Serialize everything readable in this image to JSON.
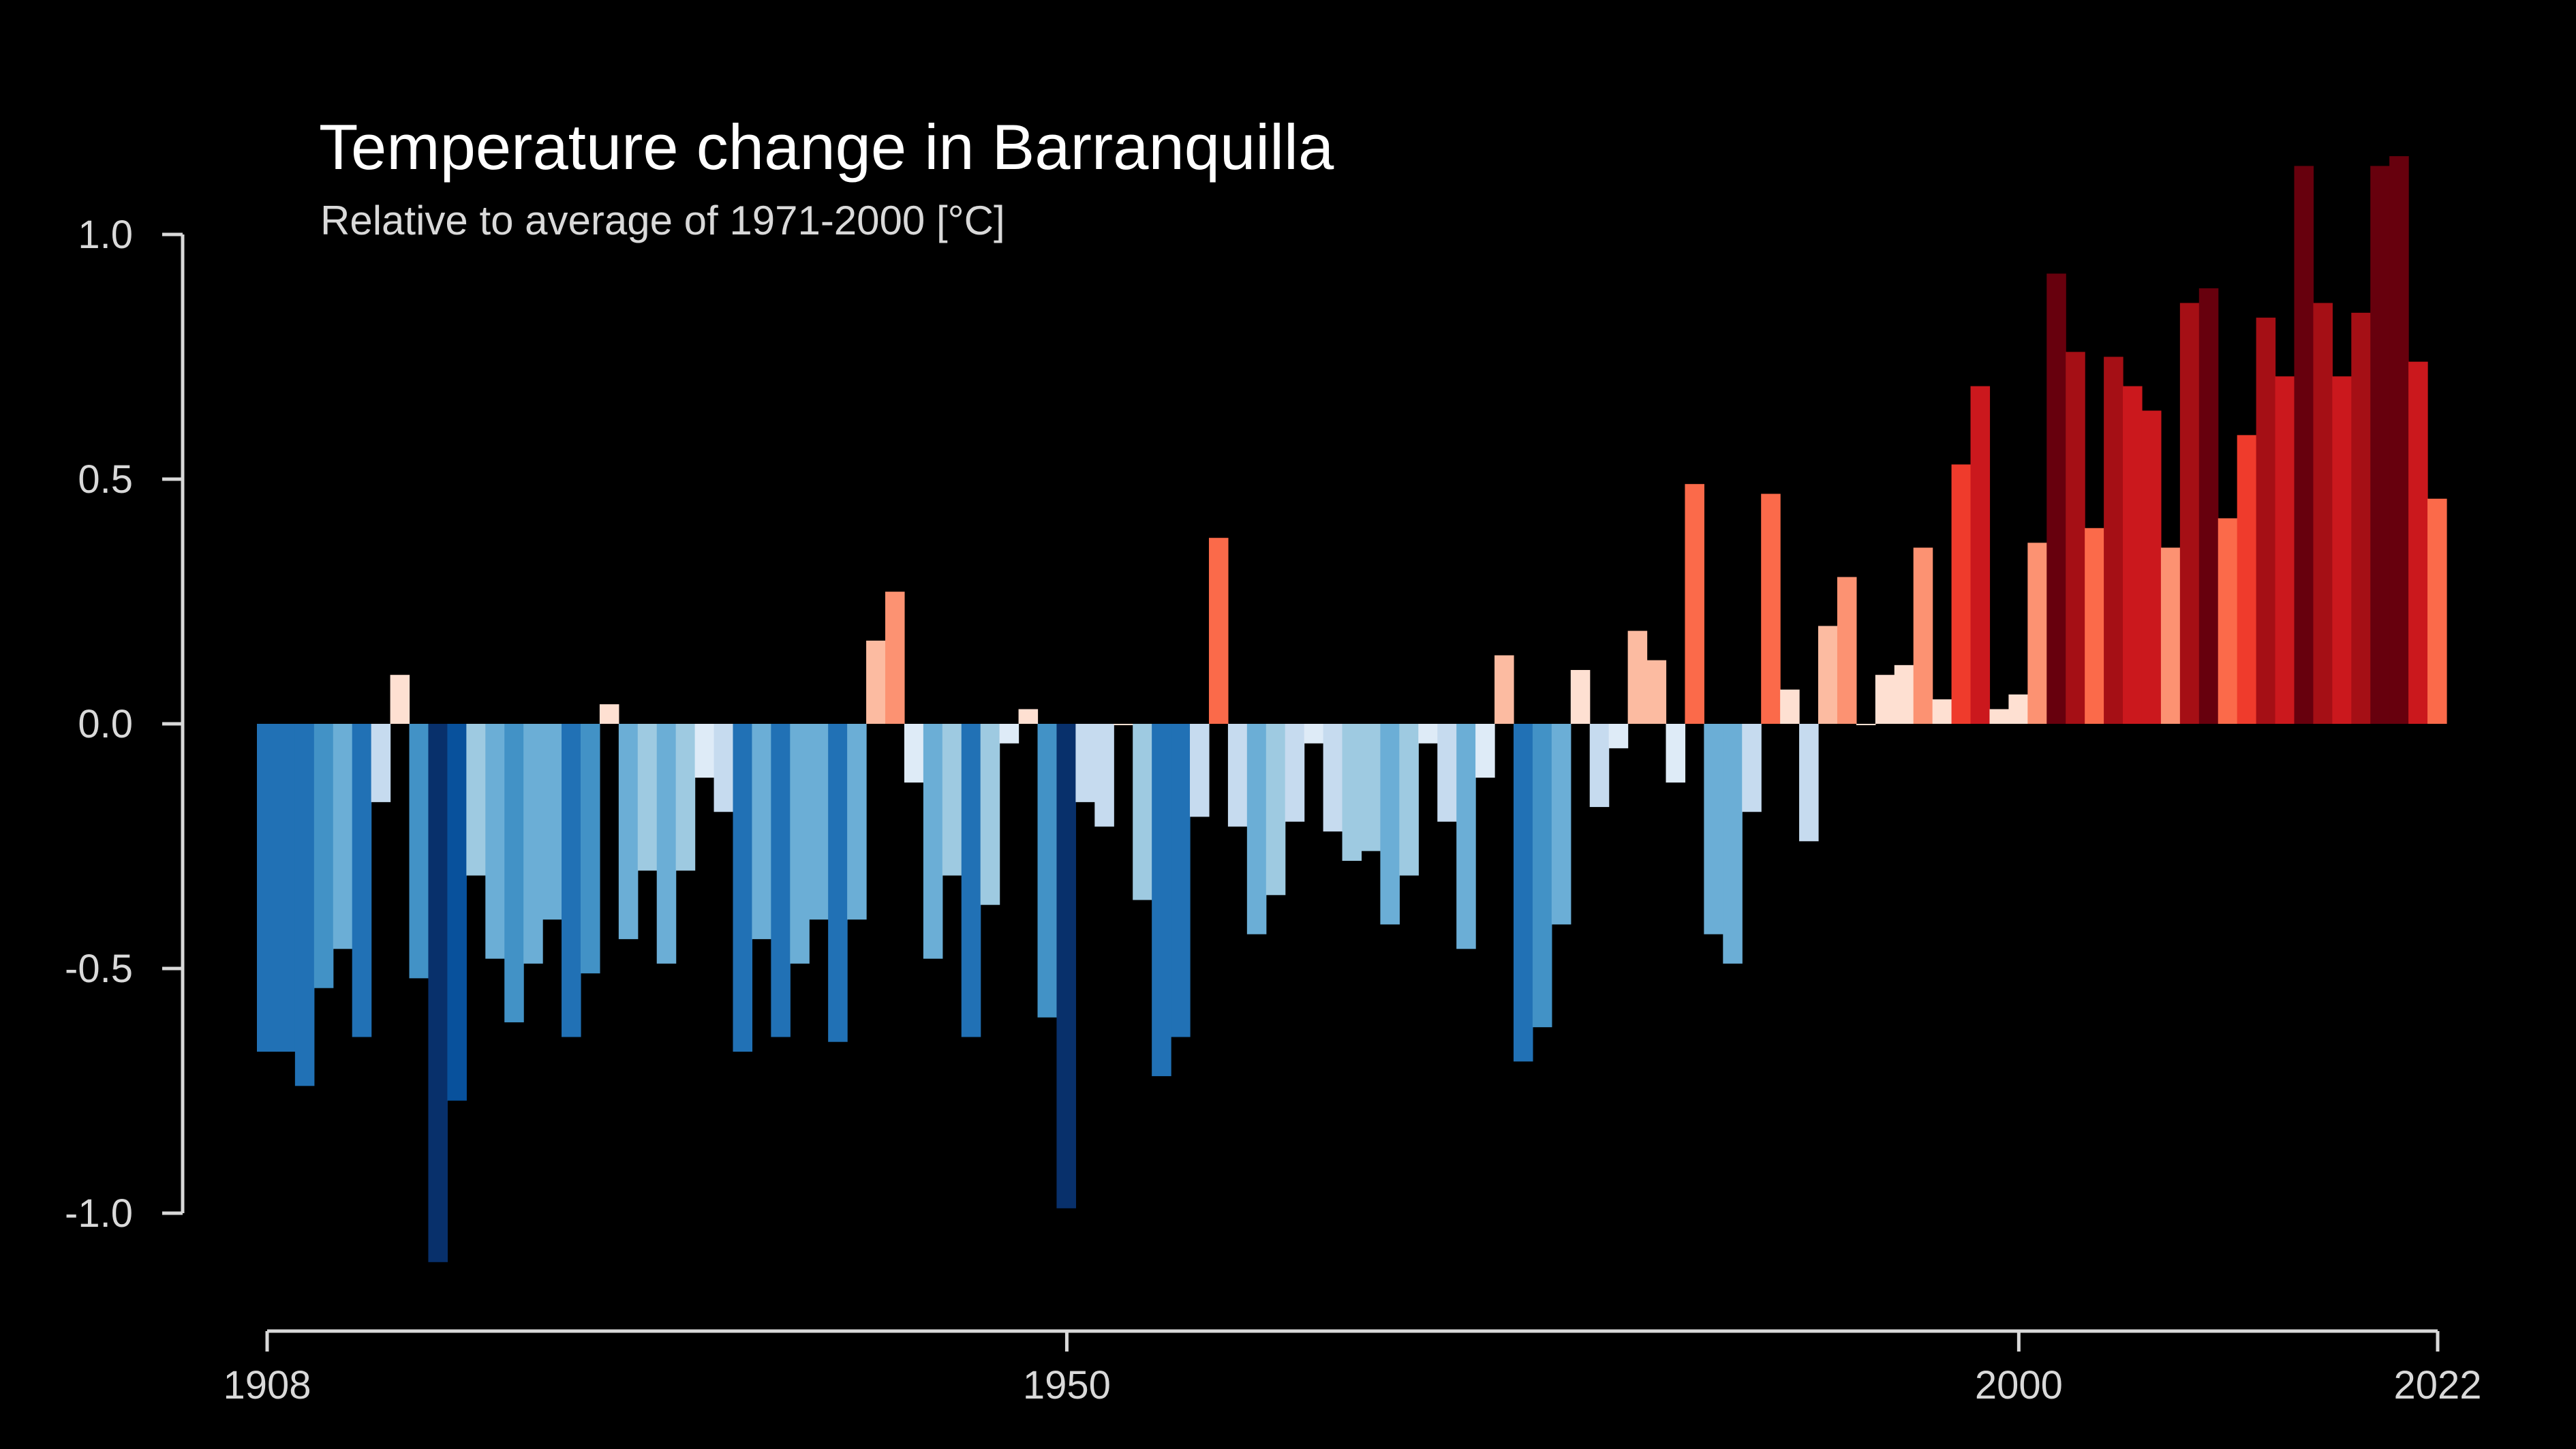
{
  "chart_data": {
    "type": "bar",
    "title": "Temperature change in Barranquilla",
    "subtitle": "Relative to average of 1971-2000  [°C]",
    "xlabel": "",
    "ylabel": "",
    "x_start": 1908,
    "x_end": 2022,
    "xlim": [
      1908,
      2022
    ],
    "ylim": [
      -1.2,
      1.1
    ],
    "y_ticks": [
      {
        "value": 1.0,
        "label": "1.0"
      },
      {
        "value": 0.5,
        "label": "0.5"
      },
      {
        "value": 0.0,
        "label": "0.0"
      },
      {
        "value": -0.5,
        "label": "-0.5"
      },
      {
        "value": -1.0,
        "label": "-1.0"
      }
    ],
    "x_ticks": [
      {
        "value": 1908,
        "label": "1908"
      },
      {
        "value": 1950,
        "label": "1950"
      },
      {
        "value": 2000,
        "label": "2000"
      },
      {
        "value": 2022,
        "label": "2022"
      }
    ],
    "grid": false,
    "legend": "none",
    "color_scale": {
      "min": -1.0,
      "max": 1.0,
      "colors": [
        "#08306b",
        "#08519c",
        "#2171b5",
        "#4292c6",
        "#6baed6",
        "#9ecae1",
        "#c6dbef",
        "#deebf7",
        "#fee0d2",
        "#fcbba1",
        "#fc9272",
        "#fb6a4a",
        "#ef3b2c",
        "#cb181d",
        "#a50f15",
        "#67000d"
      ]
    },
    "series": [
      {
        "values": [
          -0.67,
          -0.67,
          -0.74,
          -0.54,
          -0.46,
          -0.64,
          -0.16,
          0.1,
          -0.52,
          -1.1,
          -0.77,
          -0.31,
          -0.48,
          -0.61,
          -0.49,
          -0.4,
          -0.64,
          -0.51,
          0.04,
          -0.44,
          -0.3,
          -0.49,
          -0.3,
          -0.11,
          -0.18,
          -0.67,
          -0.44,
          -0.64,
          -0.49,
          -0.4,
          -0.65,
          -0.4,
          0.17,
          0.27,
          -0.12,
          -0.48,
          -0.31,
          -0.64,
          -0.37,
          -0.04,
          0.03,
          -0.6,
          -0.99,
          -0.16,
          -0.21,
          0.0,
          -0.36,
          -0.72,
          -0.64,
          -0.19,
          0.38,
          -0.21,
          -0.43,
          -0.35,
          -0.2,
          -0.04,
          -0.22,
          -0.28,
          -0.26,
          -0.41,
          -0.31,
          -0.04,
          -0.2,
          -0.46,
          -0.11,
          0.14,
          -0.69,
          -0.62,
          -0.41,
          0.11,
          -0.17,
          -0.05,
          0.19,
          0.13,
          -0.12,
          0.49,
          -0.43,
          -0.49,
          -0.18,
          0.47,
          0.07,
          -0.24,
          0.2,
          0.3,
          0.0,
          0.1,
          0.12,
          0.36,
          0.05,
          0.53,
          0.69,
          0.03,
          0.06,
          0.37,
          0.92,
          0.76,
          0.4,
          0.75,
          0.69,
          0.64,
          0.36,
          0.86,
          0.89,
          0.42,
          0.59,
          0.83,
          0.71,
          1.14,
          0.86,
          0.71,
          0.84,
          1.14,
          1.16,
          0.74,
          0.46
        ]
      }
    ]
  }
}
